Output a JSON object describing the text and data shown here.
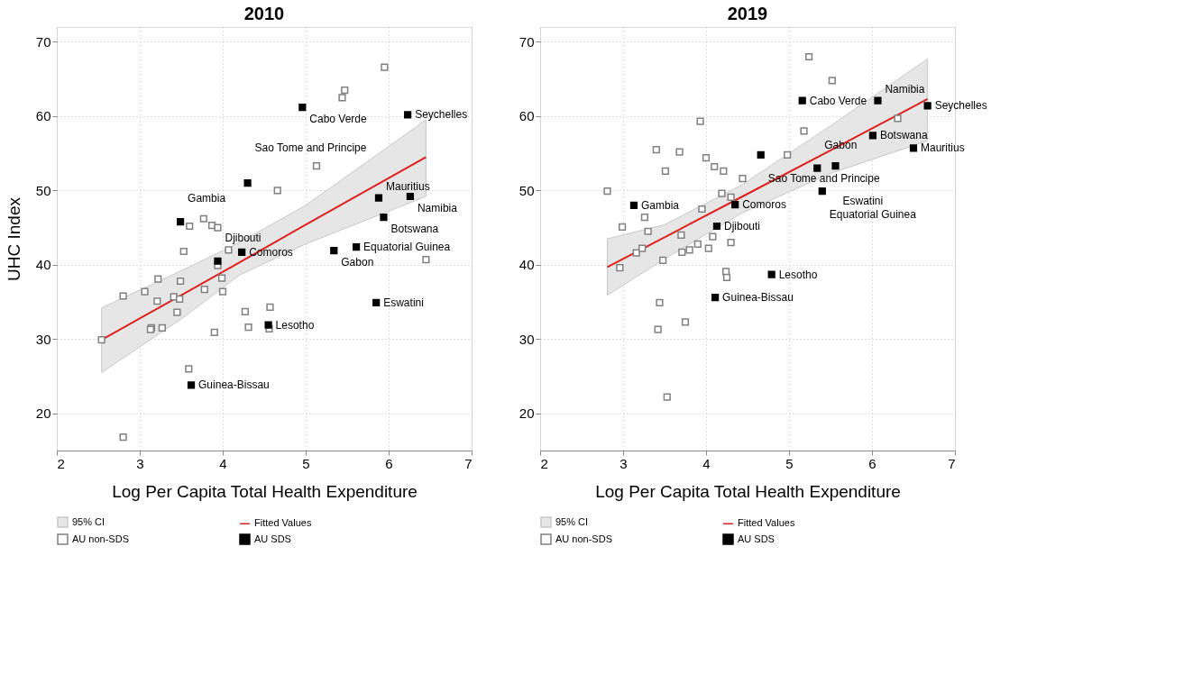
{
  "chart_data": [
    {
      "type": "scatter",
      "title": "2010",
      "xlabel": "Log Per Capita Total Health Expenditure",
      "ylabel": "UHC Index",
      "xlim": [
        2,
        7
      ],
      "xticks": [
        2,
        3,
        4,
        5,
        6,
        7
      ],
      "ylim": [
        15,
        72
      ],
      "yticks": [
        20,
        30,
        40,
        50,
        60,
        70
      ],
      "grid": true,
      "legend": "bottom",
      "series": [
        {
          "name": "95% CI",
          "type": "area",
          "color": "#e6e6e6"
        },
        {
          "name": "Fitted Values",
          "type": "line",
          "color": "#e0201b",
          "x": [
            2.54,
            3.5,
            4.2,
            5.0,
            6.45
          ],
          "values": [
            29.9,
            35.9,
            40.3,
            45.4,
            54.5
          ],
          "lower": [
            25.5,
            32.7,
            38.6,
            42.8,
            49.2
          ],
          "upper": [
            34.2,
            39.2,
            43.0,
            48.0,
            59.5
          ]
        },
        {
          "name": "AU non-SDS",
          "marker": "square",
          "color": "#808080",
          "x": [
            2.54,
            2.8,
            2.8,
            3.06,
            3.22,
            3.21,
            3.14,
            3.13,
            3.27,
            3.41,
            3.48,
            3.49,
            3.45,
            3.53,
            3.6,
            3.59,
            3.77,
            3.87,
            3.94,
            3.78,
            3.9,
            3.94,
            3.99,
            4.0,
            4.07,
            4.27,
            4.31,
            4.57,
            4.56,
            4.66,
            5.95,
            5.47,
            5.44,
            5.13,
            6.45
          ],
          "values": [
            29.9,
            35.8,
            16.8,
            36.4,
            38.1,
            35.1,
            31.5,
            31.3,
            31.5,
            35.7,
            35.4,
            37.8,
            33.6,
            41.8,
            45.2,
            26.0,
            46.2,
            45.3,
            45.0,
            36.7,
            30.9,
            39.9,
            38.2,
            36.4,
            42.0,
            33.7,
            31.6,
            34.3,
            31.4,
            50.0,
            66.6,
            63.5,
            62.5,
            53.3,
            40.7
          ]
        },
        {
          "name": "AU SDS",
          "marker": "square",
          "color": "#000000",
          "x": [
            3.49,
            3.94,
            4.23,
            4.3,
            3.62,
            4.55,
            4.96,
            6.23,
            5.88,
            6.26,
            5.94,
            5.61,
            5.34,
            5.85
          ],
          "values": [
            45.8,
            40.5,
            41.7,
            51.0,
            23.8,
            31.9,
            61.2,
            60.2,
            49.0,
            49.2,
            46.4,
            42.4,
            41.9,
            34.9
          ]
        }
      ],
      "annotations": [
        {
          "text": "Gambia",
          "x": 3.49,
          "y": 45.8
        },
        {
          "text": "Djibouti",
          "x": 3.94,
          "y": 40.5
        },
        {
          "text": "Comoros",
          "x": 4.23,
          "y": 41.7
        },
        {
          "text": "Sao Tome and Principe",
          "x": 4.3,
          "y": 51.0
        },
        {
          "text": "Guinea-Bissau",
          "x": 3.62,
          "y": 23.8
        },
        {
          "text": "Lesotho",
          "x": 4.55,
          "y": 31.9
        },
        {
          "text": "Cabo Verde",
          "x": 4.96,
          "y": 61.2
        },
        {
          "text": "Seychelles",
          "x": 6.23,
          "y": 60.2
        },
        {
          "text": "Mauritius",
          "x": 5.88,
          "y": 49.0
        },
        {
          "text": "Namibia",
          "x": 6.26,
          "y": 49.2
        },
        {
          "text": "Botswana",
          "x": 5.94,
          "y": 46.4
        },
        {
          "text": "Equatorial Guinea",
          "x": 5.61,
          "y": 42.4
        },
        {
          "text": "Gabon",
          "x": 5.34,
          "y": 41.9
        },
        {
          "text": "Eswatini",
          "x": 5.85,
          "y": 34.9
        }
      ]
    },
    {
      "type": "scatter",
      "title": "2019",
      "xlabel": "Log Per Capita Total Health Expenditure",
      "xlim": [
        2,
        7
      ],
      "xticks": [
        2,
        3,
        4,
        5,
        6,
        7
      ],
      "ylim": [
        15,
        72
      ],
      "yticks": [
        20,
        30,
        40,
        50,
        60,
        70
      ],
      "grid": true,
      "legend": "bottom",
      "series": [
        {
          "name": "95% CI",
          "type": "area",
          "color": "#e6e6e6"
        },
        {
          "name": "Fitted Values",
          "type": "line",
          "color": "#e0201b",
          "x": [
            2.81,
            3.5,
            4.44,
            5.5,
            6.67
          ],
          "values": [
            39.7,
            43.7,
            49.2,
            55.4,
            62.3
          ],
          "lower": [
            35.9,
            40.8,
            47.0,
            52.3,
            56.7
          ],
          "upper": [
            43.5,
            45.4,
            50.8,
            58.7,
            67.7
          ]
        },
        {
          "name": "AU non-SDS",
          "marker": "square",
          "color": "#808080",
          "x": [
            2.81,
            2.99,
            2.96,
            3.16,
            3.23,
            3.26,
            3.3,
            3.4,
            3.51,
            3.48,
            3.44,
            3.42,
            3.53,
            3.68,
            3.75,
            3.7,
            3.71,
            3.8,
            3.9,
            3.93,
            3.95,
            4.0,
            4.03,
            4.08,
            4.1,
            4.21,
            4.19,
            4.3,
            4.3,
            4.24,
            4.25,
            4.44,
            5.24,
            5.52,
            5.18,
            6.31,
            4.98
          ],
          "values": [
            49.9,
            45.1,
            39.6,
            41.6,
            42.2,
            46.4,
            44.5,
            55.5,
            52.6,
            40.6,
            34.9,
            31.3,
            22.2,
            55.2,
            32.3,
            44.0,
            41.7,
            42.0,
            42.8,
            59.3,
            47.5,
            54.4,
            42.2,
            43.8,
            53.2,
            52.6,
            49.6,
            49.1,
            43.0,
            39.1,
            38.3,
            51.6,
            68.0,
            64.8,
            58.0,
            59.7,
            54.8
          ]
        },
        {
          "name": "AU SDS",
          "marker": "square",
          "color": "#000000",
          "x": [
            3.13,
            4.13,
            4.35,
            4.11,
            5.16,
            6.07,
            6.67,
            6.01,
            6.5,
            4.66,
            5.34,
            5.56,
            5.4,
            4.79
          ],
          "values": [
            48.0,
            45.2,
            48.1,
            35.6,
            62.1,
            62.1,
            61.4,
            57.4,
            55.7,
            54.8,
            53.0,
            53.3,
            49.9,
            38.7
          ]
        }
      ],
      "annotations": [
        {
          "text": "Gambia",
          "x": 3.13,
          "y": 48.0
        },
        {
          "text": "Djibouti",
          "x": 4.13,
          "y": 45.2
        },
        {
          "text": "Comoros",
          "x": 4.35,
          "y": 48.1
        },
        {
          "text": "Guinea-Bissau",
          "x": 4.11,
          "y": 35.6
        },
        {
          "text": "Cabo Verde",
          "x": 5.16,
          "y": 62.1
        },
        {
          "text": "Namibia",
          "x": 6.07,
          "y": 62.1
        },
        {
          "text": "Seychelles",
          "x": 6.67,
          "y": 61.4
        },
        {
          "text": "Botswana",
          "x": 6.01,
          "y": 57.4
        },
        {
          "text": "Mauritius",
          "x": 6.5,
          "y": 55.7
        },
        {
          "text": "Sao Tome and Principe",
          "x": 4.66,
          "y": 54.8
        },
        {
          "text": "Gabon",
          "x": 5.34,
          "y": 53.0
        },
        {
          "text": "Eswatini",
          "x": 5.56,
          "y": 53.3
        },
        {
          "text": "Equatorial Guinea",
          "x": 5.4,
          "y": 49.9
        },
        {
          "text": "Lesotho",
          "x": 4.79,
          "y": 38.7
        }
      ]
    }
  ]
}
